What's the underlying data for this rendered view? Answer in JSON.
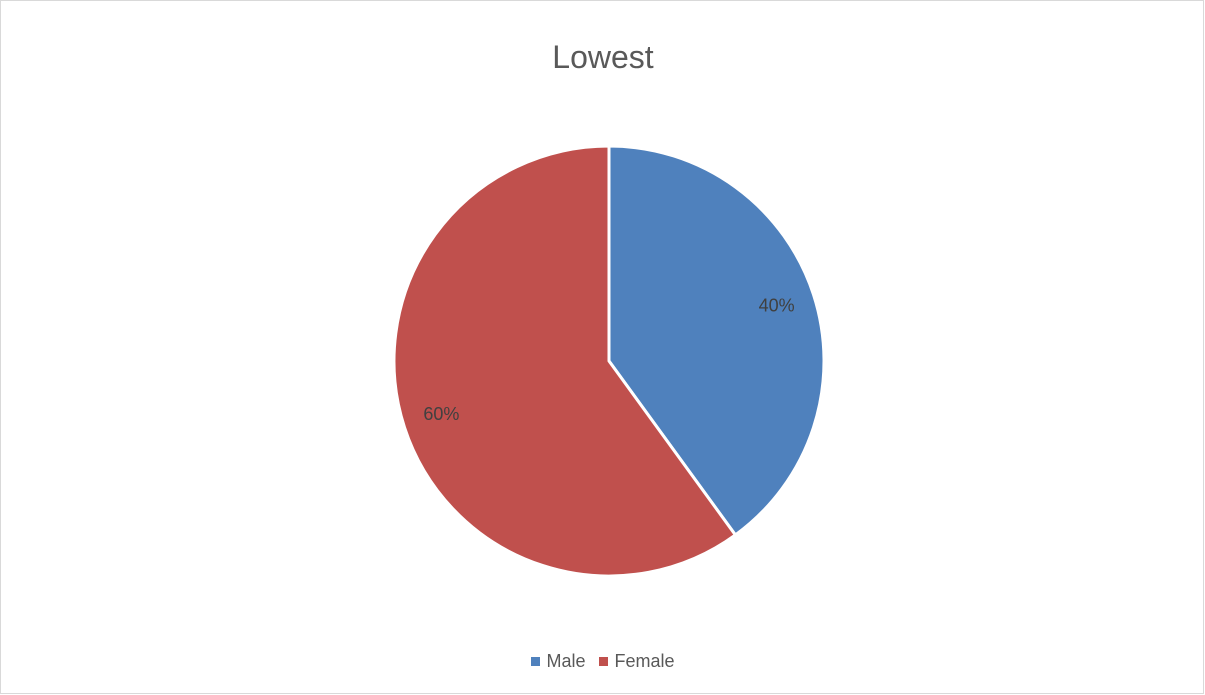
{
  "chart_data": {
    "type": "pie",
    "title": "Lowest",
    "categories": [
      "Male",
      "Female"
    ],
    "values": [
      40,
      60
    ],
    "data_labels": [
      "40%",
      "60%"
    ],
    "colors": [
      "#4f81bd",
      "#c0504d"
    ],
    "legend_position": "bottom",
    "start_angle": "12 o'clock",
    "direction": "clockwise"
  }
}
